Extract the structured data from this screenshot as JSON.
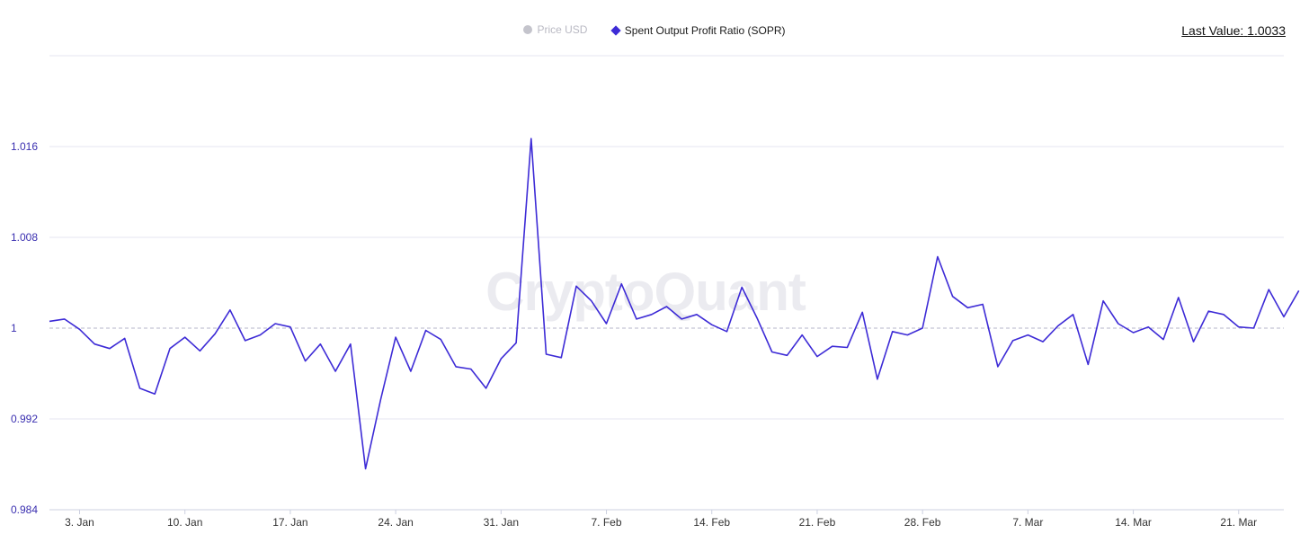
{
  "legend": {
    "price_label": "Price USD",
    "sopr_label": "Spent Output Profit Ratio (SOPR)",
    "price_color": "#c4c4cc",
    "sopr_color": "#3d2bd6"
  },
  "last_value": {
    "label": "Last Value:",
    "value": "1.0033"
  },
  "watermark": "CryptoQuant",
  "chart_data": {
    "type": "line",
    "title": "",
    "xlabel": "",
    "ylabel": "",
    "ylim": [
      0.984,
      1.024
    ],
    "yticks": [
      0.984,
      0.992,
      1,
      1.008,
      1.016
    ],
    "ytick_labels": [
      "0.984",
      "0.992",
      "1",
      "1.008",
      "1.016"
    ],
    "reference_line": 1,
    "x_start": "2021-01-01",
    "x_end": "2021-03-24",
    "xtick_labels": [
      {
        "date": "2021-01-03",
        "label": "3. Jan"
      },
      {
        "date": "2021-01-10",
        "label": "10. Jan"
      },
      {
        "date": "2021-01-17",
        "label": "17. Jan"
      },
      {
        "date": "2021-01-24",
        "label": "24. Jan"
      },
      {
        "date": "2021-01-31",
        "label": "31. Jan"
      },
      {
        "date": "2021-02-07",
        "label": "7. Feb"
      },
      {
        "date": "2021-02-14",
        "label": "14. Feb"
      },
      {
        "date": "2021-02-21",
        "label": "21. Feb"
      },
      {
        "date": "2021-02-28",
        "label": "28. Feb"
      },
      {
        "date": "2021-03-07",
        "label": "7. Mar"
      },
      {
        "date": "2021-03-14",
        "label": "14. Mar"
      },
      {
        "date": "2021-03-21",
        "label": "21. Mar"
      }
    ],
    "grid": true,
    "series": [
      {
        "name": "Spent Output Profit Ratio (SOPR)",
        "color": "#3d2bd6",
        "values": [
          1.0006,
          1.0008,
          0.9999,
          0.9986,
          0.9982,
          0.9991,
          0.9947,
          0.9942,
          0.9982,
          0.9992,
          0.998,
          0.9995,
          1.0016,
          0.9989,
          0.9994,
          1.0004,
          1.0001,
          0.9971,
          0.9986,
          0.9962,
          0.9986,
          0.9876,
          0.9937,
          0.9992,
          0.9962,
          0.9998,
          0.999,
          0.9966,
          0.9964,
          0.9947,
          0.9973,
          0.9987,
          1.0167,
          0.9977,
          0.9974,
          1.0037,
          1.0024,
          1.0004,
          1.0039,
          1.0008,
          1.0012,
          1.0019,
          1.0008,
          1.0012,
          1.0003,
          0.9997,
          1.0036,
          1.0009,
          0.9979,
          0.9976,
          0.9994,
          0.9975,
          0.9984,
          0.9983,
          1.0014,
          0.9955,
          0.9997,
          0.9994,
          1.0,
          1.0063,
          1.0028,
          1.0018,
          1.0021,
          0.9966,
          0.9989,
          0.9994,
          0.9988,
          1.0002,
          1.0012,
          0.9968,
          1.0024,
          1.0004,
          0.9996,
          1.0001,
          0.999,
          1.0027,
          0.9988,
          1.0015,
          1.0012,
          1.0001,
          1.0,
          1.0034,
          1.001,
          1.0033
        ]
      }
    ]
  }
}
